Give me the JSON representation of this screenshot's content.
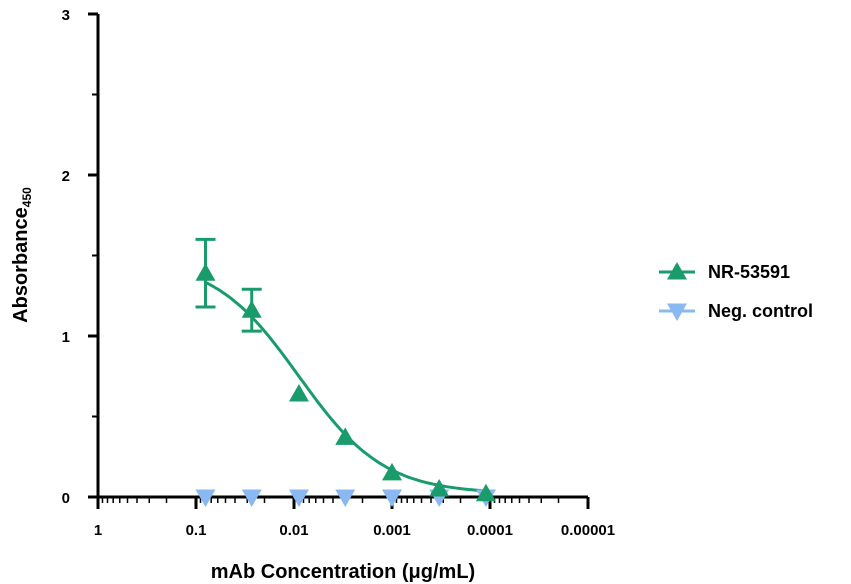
{
  "chart_data": {
    "type": "scatter",
    "x_scale": "log-reversed",
    "xlim": [
      1,
      1e-05
    ],
    "ylim": [
      0,
      3
    ],
    "xlabel": "mAb Concentration (μg/mL)",
    "ylabel_main": "Absorbance",
    "ylabel_sub": "450",
    "x_tick_labels": [
      "1",
      "0.1",
      "0.01",
      "0.001",
      "0.0001",
      "0.00001"
    ],
    "x_tick_values": [
      1,
      0.1,
      0.01,
      0.001,
      0.0001,
      1e-05
    ],
    "y_tick_labels": [
      "0",
      "1",
      "2",
      "3"
    ],
    "y_tick_values": [
      0,
      1,
      2,
      3
    ],
    "legend_position": "right",
    "series": [
      {
        "name": "NR-53591",
        "marker": "triangle-up",
        "color": "#1a9b6c",
        "fit_curve": true,
        "x": [
          0.08,
          0.027,
          0.0089,
          0.003,
          0.001,
          0.00033,
          0.00011
        ],
        "y": [
          1.39,
          1.16,
          0.64,
          0.37,
          0.15,
          0.05,
          0.02
        ],
        "error": [
          0.21,
          0.13,
          0,
          0,
          0,
          0,
          0
        ]
      },
      {
        "name": "Neg. control",
        "marker": "triangle-down",
        "color": "#8ab8f0",
        "fit_curve": false,
        "x": [
          0.08,
          0.027,
          0.0089,
          0.003,
          0.001,
          0.00033,
          0.00011
        ],
        "y": [
          0.0,
          0.0,
          0.0,
          0.0,
          0.0,
          0.0,
          0.0
        ],
        "error": [
          0,
          0,
          0,
          0,
          0,
          0,
          0
        ]
      }
    ],
    "fit": {
      "series": "NR-53591",
      "bottom": 0.02,
      "top": 1.48,
      "log_ec50": -2.05,
      "hill": 1.0
    }
  }
}
